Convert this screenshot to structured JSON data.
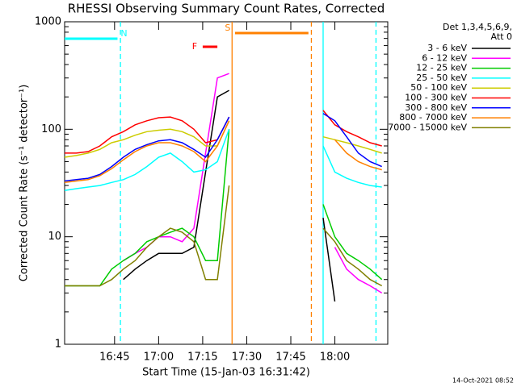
{
  "chart_data": {
    "type": "line",
    "yscale": "log",
    "title": "RHESSI Observing Summary Count Rates, Corrected",
    "xlabel": "Start Time (15-Jan-03 16:31:42)",
    "ylabel": "Corrected Count Rate (s⁻¹ detector⁻¹)",
    "legend_header": [
      "Det 1,3,4,5,6,9,",
      "Att 0"
    ],
    "footer": "14-Oct-2021 08:52",
    "xlim": [
      "16:28",
      "18:18"
    ],
    "xticks": [
      "16:45",
      "17:00",
      "17:15",
      "17:30",
      "17:45",
      "18:00"
    ],
    "ylim": [
      1,
      1000
    ],
    "yticks": [
      1,
      10,
      100,
      1000
    ],
    "x": [
      "16:28",
      "16:32",
      "16:36",
      "16:40",
      "16:44",
      "16:48",
      "16:52",
      "16:56",
      "17:00",
      "17:04",
      "17:08",
      "17:12",
      "17:16",
      "17:20",
      "17:24",
      "17:40",
      "17:56",
      "18:00",
      "18:04",
      "18:08",
      "18:12",
      "18:16"
    ],
    "series": [
      {
        "name": "3 - 6 keV",
        "color": "#000000",
        "values": [
          null,
          null,
          null,
          null,
          null,
          4,
          5,
          6,
          7,
          7,
          7,
          8,
          40,
          200,
          230,
          null,
          15,
          2.5,
          null,
          null,
          null,
          null
        ]
      },
      {
        "name": "6 - 12 keV",
        "color": "#ff00ff",
        "values": [
          null,
          null,
          null,
          null,
          null,
          6,
          7,
          8,
          10,
          10,
          9,
          12,
          60,
          300,
          330,
          null,
          null,
          8,
          5,
          4,
          3.5,
          3
        ]
      },
      {
        "name": "12 - 25 keV",
        "color": "#00cc00",
        "values": [
          3.5,
          3.5,
          3.5,
          3.5,
          5,
          6,
          7,
          9,
          10,
          11,
          12,
          10,
          6,
          6,
          100,
          null,
          20,
          10,
          7,
          6,
          5,
          4
        ]
      },
      {
        "name": "25 - 50 keV",
        "color": "#00ffff",
        "values": [
          27,
          28,
          29,
          30,
          32,
          34,
          38,
          45,
          55,
          60,
          50,
          40,
          42,
          50,
          100,
          null,
          70,
          40,
          35,
          32,
          30,
          29
        ]
      },
      {
        "name": "50 - 100 keV",
        "color": "#cccc00",
        "values": [
          55,
          57,
          60,
          65,
          75,
          80,
          88,
          95,
          98,
          100,
          95,
          85,
          70,
          70,
          120,
          null,
          85,
          80,
          75,
          70,
          65,
          60
        ]
      },
      {
        "name": "100 - 300 keV",
        "color": "#ff0000",
        "values": [
          60,
          60,
          62,
          70,
          85,
          95,
          110,
          120,
          128,
          130,
          120,
          100,
          75,
          80,
          130,
          null,
          150,
          110,
          95,
          85,
          75,
          70
        ]
      },
      {
        "name": "300 - 800 keV",
        "color": "#0000ff",
        "values": [
          33,
          34,
          35,
          38,
          45,
          55,
          65,
          72,
          78,
          80,
          75,
          65,
          55,
          80,
          130,
          null,
          140,
          120,
          85,
          60,
          50,
          45
        ]
      },
      {
        "name": "800 - 7000 keV",
        "color": "#ff8000",
        "values": [
          32,
          33,
          34,
          37,
          43,
          52,
          62,
          70,
          75,
          75,
          70,
          62,
          50,
          70,
          120,
          null,
          null,
          80,
          60,
          50,
          45,
          42
        ]
      },
      {
        "name": "7000 - 15000 keV",
        "color": "#808000",
        "values": [
          3.5,
          3.5,
          3.5,
          3.5,
          4,
          5,
          6,
          8,
          10,
          12,
          11,
          9,
          4,
          4,
          30,
          null,
          12,
          9,
          6,
          5,
          4,
          3.5
        ]
      }
    ],
    "intervals": [
      {
        "label": "N",
        "start": "16:28",
        "end": "16:46",
        "color": "#00ffff"
      },
      {
        "label": "S",
        "start": "17:26",
        "end": "17:51",
        "color": "#ff8000"
      },
      {
        "label": "F",
        "start": "17:15",
        "end": "17:20",
        "color": "#ff0000"
      }
    ],
    "vlines": [
      {
        "x": "16:47",
        "color": "#00ffff",
        "dashed": true
      },
      {
        "x": "17:25",
        "color": "#ff8000",
        "dashed": false
      },
      {
        "x": "17:52",
        "color": "#ff8000",
        "dashed": true
      },
      {
        "x": "17:56",
        "color": "#00ffff",
        "dashed": false
      },
      {
        "x": "18:14",
        "color": "#00ffff",
        "dashed": true
      }
    ]
  }
}
